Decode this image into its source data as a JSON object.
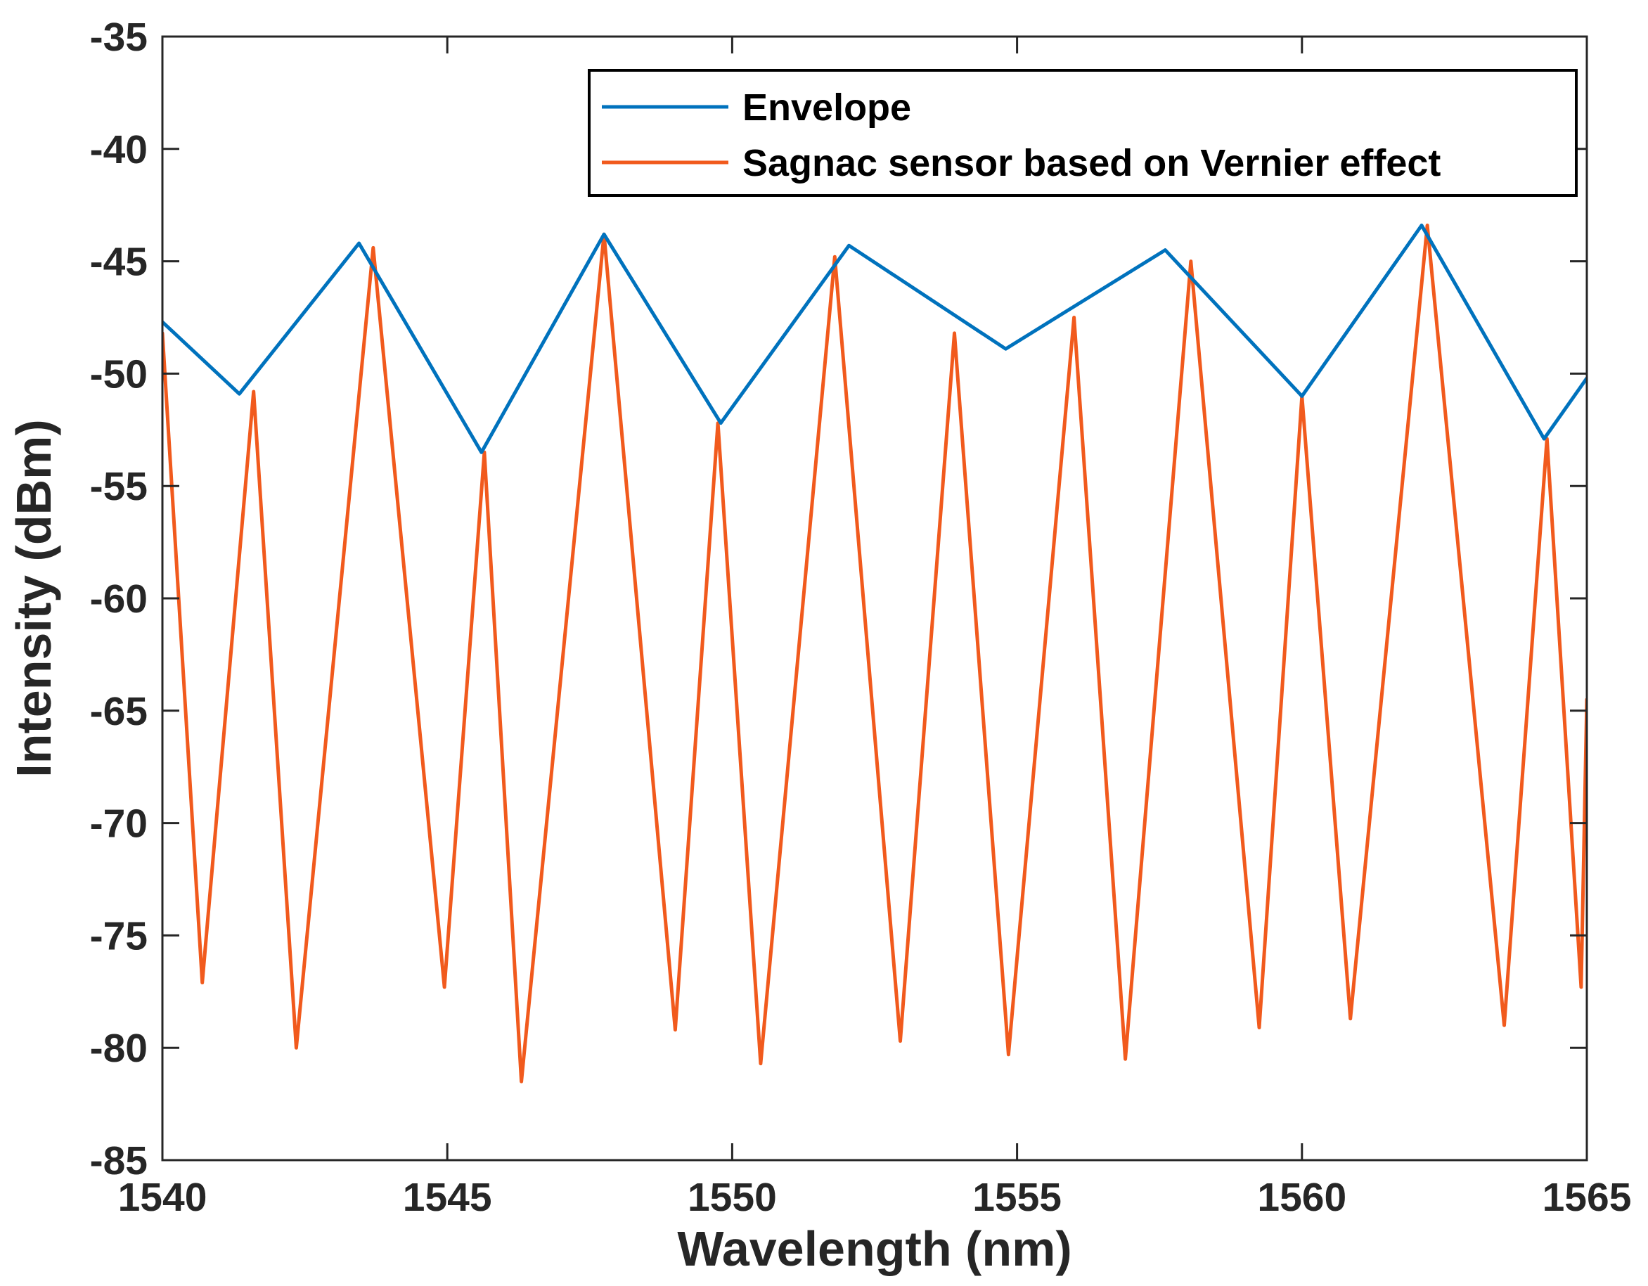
{
  "chart_data": {
    "type": "line",
    "title": "",
    "xlabel": "Wavelength (nm)",
    "ylabel": "Intensity (dBm)",
    "xlim": [
      1540,
      1565
    ],
    "ylim": [
      -85,
      -35
    ],
    "x_ticks": [
      1540,
      1545,
      1550,
      1555,
      1560,
      1565
    ],
    "y_ticks": [
      -35,
      -40,
      -45,
      -50,
      -55,
      -60,
      -65,
      -70,
      -75,
      -80,
      -85
    ],
    "x_tick_labels": [
      "1540",
      "1545",
      "1550",
      "1555",
      "1560",
      "1565"
    ],
    "y_tick_labels": [
      "-35",
      "-40",
      "-45",
      "-50",
      "-55",
      "-60",
      "-65",
      "-70",
      "-75",
      "-80",
      "-85"
    ],
    "grid": false,
    "legend_position": "top-right",
    "series": [
      {
        "name": "Envelope",
        "color": "#0072BD",
        "x": [
          1540.0,
          1541.35,
          1543.45,
          1545.6,
          1547.75,
          1549.8,
          1552.05,
          1554.8,
          1557.6,
          1560.0,
          1562.1,
          1564.25,
          1565.0
        ],
        "y": [
          -47.7,
          -50.9,
          -44.2,
          -53.5,
          -43.8,
          -52.2,
          -44.3,
          -48.9,
          -44.5,
          -51.0,
          -43.4,
          -52.9,
          -50.2
        ]
      },
      {
        "name": "Sagnac sensor based on Vernier effect",
        "color": "#F15A1D",
        "x": [
          1540.0,
          1540.7,
          1541.6,
          1542.35,
          1543.7,
          1544.95,
          1545.65,
          1546.3,
          1547.75,
          1549.0,
          1549.75,
          1550.5,
          1551.8,
          1552.95,
          1553.9,
          1554.85,
          1556.0,
          1556.9,
          1558.05,
          1559.25,
          1560.0,
          1560.85,
          1562.2,
          1563.55,
          1564.3,
          1564.9,
          1565.0
        ],
        "y": [
          -48.2,
          -77.1,
          -50.8,
          -80.0,
          -44.4,
          -77.3,
          -53.5,
          -81.5,
          -43.8,
          -79.2,
          -52.2,
          -80.7,
          -44.8,
          -79.7,
          -48.2,
          -80.3,
          -47.5,
          -80.5,
          -45.0,
          -79.1,
          -51.0,
          -78.7,
          -43.4,
          -79.0,
          -52.9,
          -77.3,
          -64.5
        ]
      }
    ]
  }
}
